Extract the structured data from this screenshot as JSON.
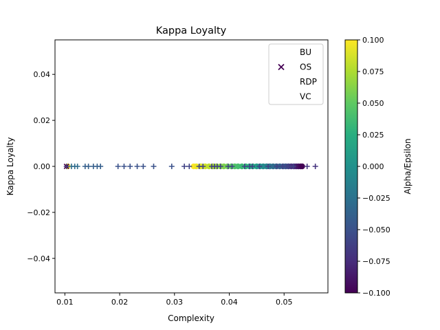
{
  "chart_data": {
    "type": "scatter",
    "title": "Kappa Loyalty",
    "xlabel": "Complexity",
    "ylabel": "Kappa Loyalty",
    "xlim": [
      0.0082,
      0.058
    ],
    "ylim": [
      -0.055,
      0.055
    ],
    "xticks": [
      0.01,
      0.02,
      0.03,
      0.04,
      0.05
    ],
    "xtick_labels": [
      "0.01",
      "0.02",
      "0.03",
      "0.04",
      "0.05"
    ],
    "yticks": [
      -0.04,
      -0.02,
      0.0,
      0.02,
      0.04
    ],
    "ytick_labels": [
      "−0.04",
      "−0.02",
      "0.00",
      "0.02",
      "0.04"
    ],
    "grid": false,
    "legend_position": "top-right",
    "legend": [
      {
        "label": "BU",
        "marker": "none"
      },
      {
        "label": "OS",
        "marker": "x",
        "color": "#440154"
      },
      {
        "label": "RDP",
        "marker": "none"
      },
      {
        "label": "VC",
        "marker": "none"
      }
    ],
    "colorbar": {
      "label": "Alpha/Epsilon",
      "range": [
        -0.1,
        0.1
      ],
      "ticks": [
        0.1,
        0.075,
        0.05,
        0.025,
        0.0,
        -0.025,
        -0.05,
        -0.075,
        -0.1
      ],
      "tick_labels": [
        "0.100",
        "0.075",
        "0.050",
        "0.025",
        "0.000",
        "−0.025",
        "−0.050",
        "−0.075",
        "−0.100"
      ],
      "colormap": "viridis"
    },
    "series": [
      {
        "name": "BU",
        "marker": "circle",
        "points": [
          {
            "x": 0.0335,
            "y": 0,
            "c": 0.1
          },
          {
            "x": 0.034,
            "y": 0,
            "c": 0.095
          },
          {
            "x": 0.0348,
            "y": 0,
            "c": 0.09
          },
          {
            "x": 0.0356,
            "y": 0,
            "c": 0.085
          },
          {
            "x": 0.0363,
            "y": 0,
            "c": 0.08
          },
          {
            "x": 0.037,
            "y": 0,
            "c": 0.075
          },
          {
            "x": 0.0377,
            "y": 0,
            "c": 0.07
          },
          {
            "x": 0.0384,
            "y": 0,
            "c": 0.065
          },
          {
            "x": 0.039,
            "y": 0,
            "c": 0.06
          },
          {
            "x": 0.0397,
            "y": 0,
            "c": 0.055
          },
          {
            "x": 0.0404,
            "y": 0,
            "c": 0.05
          },
          {
            "x": 0.041,
            "y": 0,
            "c": 0.045
          },
          {
            "x": 0.0416,
            "y": 0,
            "c": 0.04
          },
          {
            "x": 0.0423,
            "y": 0,
            "c": 0.035
          },
          {
            "x": 0.043,
            "y": 0,
            "c": 0.03
          },
          {
            "x": 0.0437,
            "y": 0,
            "c": 0.025
          },
          {
            "x": 0.0443,
            "y": 0,
            "c": 0.02
          },
          {
            "x": 0.045,
            "y": 0,
            "c": 0.01
          },
          {
            "x": 0.0456,
            "y": 0,
            "c": 0.0
          },
          {
            "x": 0.0462,
            "y": 0,
            "c": -0.005
          },
          {
            "x": 0.0468,
            "y": 0,
            "c": -0.01
          },
          {
            "x": 0.0474,
            "y": 0,
            "c": -0.02
          },
          {
            "x": 0.048,
            "y": 0,
            "c": -0.03
          },
          {
            "x": 0.0486,
            "y": 0,
            "c": -0.035
          },
          {
            "x": 0.0492,
            "y": 0,
            "c": -0.04
          },
          {
            "x": 0.0498,
            "y": 0,
            "c": -0.045
          },
          {
            "x": 0.0503,
            "y": 0,
            "c": -0.05
          },
          {
            "x": 0.0508,
            "y": 0,
            "c": -0.06
          },
          {
            "x": 0.0513,
            "y": 0,
            "c": -0.07
          },
          {
            "x": 0.0518,
            "y": 0,
            "c": -0.075
          },
          {
            "x": 0.0522,
            "y": 0,
            "c": -0.08
          },
          {
            "x": 0.0526,
            "y": 0,
            "c": -0.09
          },
          {
            "x": 0.053,
            "y": 0,
            "c": -0.095
          },
          {
            "x": 0.0533,
            "y": 0,
            "c": -0.1
          },
          {
            "x": 0.0105,
            "y": 0,
            "c": 0.095
          }
        ]
      },
      {
        "name": "OS",
        "marker": "x",
        "points": [
          {
            "x": 0.0103,
            "y": 0,
            "c": -0.1
          }
        ]
      },
      {
        "name": "RDP",
        "marker": "plus",
        "points": [
          {
            "x": 0.0103,
            "y": 0,
            "c": -0.07
          },
          {
            "x": 0.0112,
            "y": 0,
            "c": -0.03
          },
          {
            "x": 0.0118,
            "y": 0,
            "c": -0.03
          },
          {
            "x": 0.0123,
            "y": 0,
            "c": -0.03
          },
          {
            "x": 0.0137,
            "y": 0,
            "c": -0.04
          },
          {
            "x": 0.0143,
            "y": 0,
            "c": -0.04
          },
          {
            "x": 0.0152,
            "y": 0,
            "c": -0.04
          },
          {
            "x": 0.0159,
            "y": 0,
            "c": -0.04
          },
          {
            "x": 0.0165,
            "y": 0,
            "c": -0.04
          },
          {
            "x": 0.0197,
            "y": 0,
            "c": -0.05
          },
          {
            "x": 0.0208,
            "y": 0,
            "c": -0.05
          },
          {
            "x": 0.0219,
            "y": 0,
            "c": -0.05
          },
          {
            "x": 0.0232,
            "y": 0,
            "c": -0.05
          },
          {
            "x": 0.0243,
            "y": 0,
            "c": -0.05
          },
          {
            "x": 0.0262,
            "y": 0,
            "c": -0.05
          },
          {
            "x": 0.0295,
            "y": 0,
            "c": -0.05
          },
          {
            "x": 0.0318,
            "y": 0,
            "c": -0.06
          },
          {
            "x": 0.0327,
            "y": 0,
            "c": -0.06
          },
          {
            "x": 0.0345,
            "y": 0,
            "c": -0.06
          },
          {
            "x": 0.0352,
            "y": 0,
            "c": -0.06
          },
          {
            "x": 0.0368,
            "y": 0,
            "c": -0.06
          },
          {
            "x": 0.0373,
            "y": 0,
            "c": -0.06
          },
          {
            "x": 0.0378,
            "y": 0,
            "c": -0.06
          },
          {
            "x": 0.0384,
            "y": 0,
            "c": -0.06
          },
          {
            "x": 0.0398,
            "y": 0,
            "c": -0.06
          },
          {
            "x": 0.0405,
            "y": 0,
            "c": -0.06
          },
          {
            "x": 0.0428,
            "y": 0,
            "c": -0.06
          },
          {
            "x": 0.0437,
            "y": 0,
            "c": -0.06
          },
          {
            "x": 0.0442,
            "y": 0,
            "c": -0.06
          },
          {
            "x": 0.0455,
            "y": 0,
            "c": -0.06
          },
          {
            "x": 0.0471,
            "y": 0,
            "c": -0.06
          },
          {
            "x": 0.0487,
            "y": 0,
            "c": -0.06
          },
          {
            "x": 0.0497,
            "y": 0,
            "c": -0.06
          },
          {
            "x": 0.0508,
            "y": 0,
            "c": -0.06
          },
          {
            "x": 0.0517,
            "y": 0,
            "c": -0.06
          },
          {
            "x": 0.0542,
            "y": 0,
            "c": -0.07
          },
          {
            "x": 0.0557,
            "y": 0,
            "c": -0.07
          }
        ]
      },
      {
        "name": "VC",
        "marker": "circle",
        "points": []
      }
    ]
  }
}
